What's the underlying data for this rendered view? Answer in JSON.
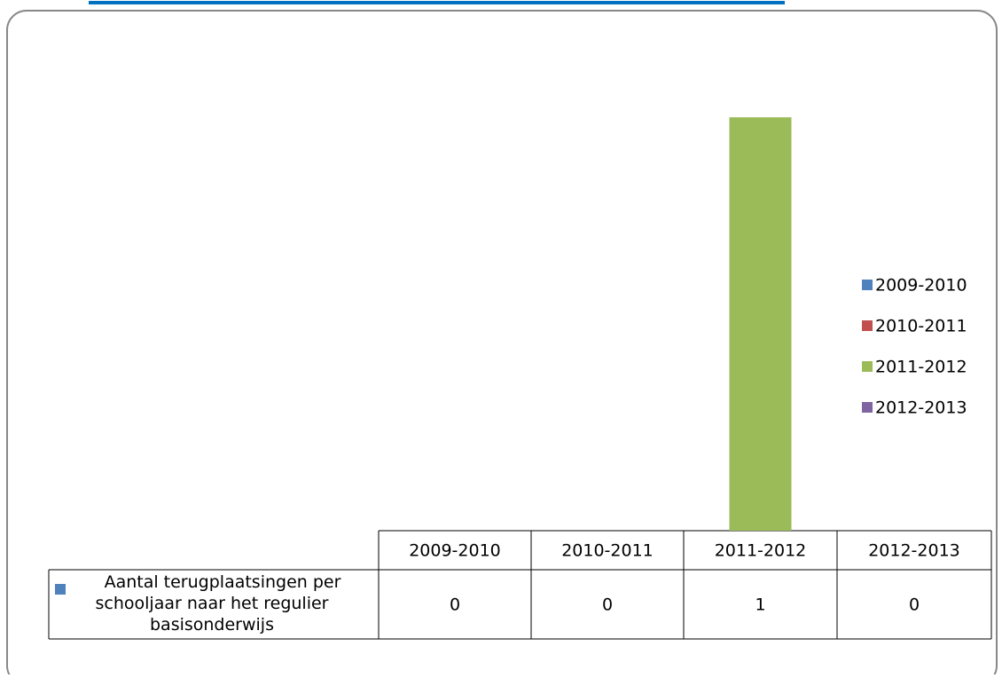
{
  "chart_data": {
    "type": "bar",
    "categories": [
      "Aantal  terugplaatsingen per schooljaar naar het regulier basisonderwijs"
    ],
    "series": [
      {
        "name": "2009-2010",
        "color": "#4f81bd",
        "values": [
          0
        ]
      },
      {
        "name": "2010-2011",
        "color": "#c0504d",
        "values": [
          0
        ]
      },
      {
        "name": "2011-2012",
        "color": "#9bbb59",
        "values": [
          1
        ]
      },
      {
        "name": "2012-2013",
        "color": "#8064a2",
        "values": [
          0
        ]
      }
    ],
    "ylim": [
      0,
      1.2
    ],
    "legend": "right",
    "data_table": true
  }
}
